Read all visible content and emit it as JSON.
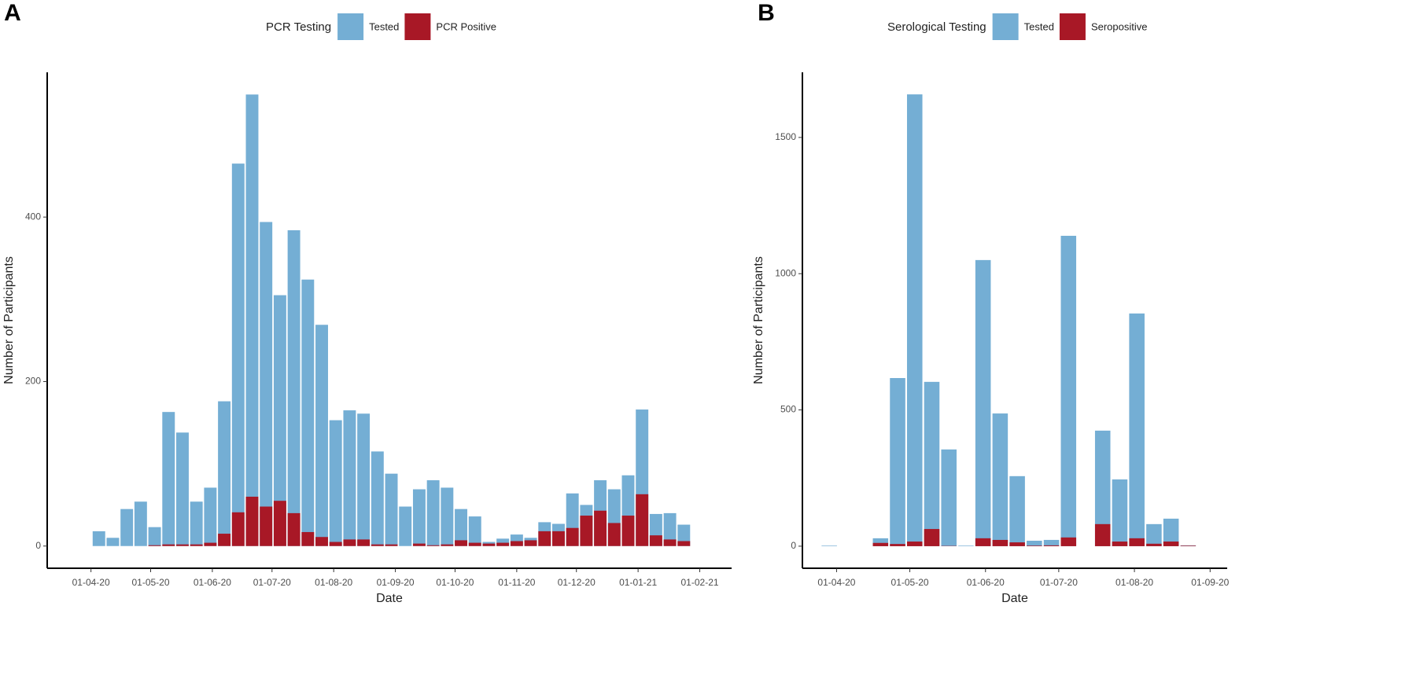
{
  "chart_data": [
    {
      "type": "bar",
      "barmode": "overlay",
      "panel_label": "A",
      "legend_title": "PCR Testing",
      "xlabel": "Date",
      "ylabel": "Number of Participants",
      "x": [
        "2020-04-05",
        "2020-04-12",
        "2020-04-19",
        "2020-04-26",
        "2020-05-03",
        "2020-05-10",
        "2020-05-17",
        "2020-05-24",
        "2020-05-31",
        "2020-06-07",
        "2020-06-14",
        "2020-06-21",
        "2020-06-28",
        "2020-07-05",
        "2020-07-12",
        "2020-07-19",
        "2020-07-26",
        "2020-08-02",
        "2020-08-09",
        "2020-08-16",
        "2020-08-23",
        "2020-08-30",
        "2020-09-06",
        "2020-09-13",
        "2020-09-20",
        "2020-09-27",
        "2020-10-04",
        "2020-10-11",
        "2020-10-18",
        "2020-10-25",
        "2020-11-01",
        "2020-11-08",
        "2020-11-15",
        "2020-11-22",
        "2020-11-29",
        "2020-12-06",
        "2020-12-13",
        "2020-12-20",
        "2020-12-27",
        "2021-01-03",
        "2021-01-10",
        "2021-01-17",
        "2021-01-24"
      ],
      "series": [
        {
          "name": "Tested",
          "color": "#74aed4",
          "values": [
            18,
            10,
            45,
            54,
            23,
            163,
            138,
            54,
            71,
            176,
            465,
            549,
            394,
            305,
            384,
            324,
            269,
            153,
            165,
            161,
            115,
            88,
            48,
            69,
            80,
            71,
            45,
            36,
            5,
            9,
            14,
            10,
            29,
            27,
            64,
            50,
            80,
            69,
            86,
            166,
            39,
            40,
            26
          ]
        },
        {
          "name": "PCR Positive",
          "color": "#a81826",
          "values": [
            0,
            0,
            0,
            0,
            1,
            2,
            2,
            2,
            4,
            15,
            41,
            60,
            48,
            55,
            40,
            17,
            11,
            5,
            8,
            8,
            2,
            2,
            0,
            3,
            1,
            2,
            7,
            4,
            3,
            4,
            6,
            7,
            18,
            18,
            22,
            37,
            43,
            28,
            37,
            63,
            13,
            8,
            6
          ]
        }
      ],
      "xlim": [
        "2020-03-10",
        "2021-02-17"
      ],
      "xticks": [
        {
          "value": "2020-04-01",
          "label": "01-04-20"
        },
        {
          "value": "2020-05-01",
          "label": "01-05-20"
        },
        {
          "value": "2020-06-01",
          "label": "01-06-20"
        },
        {
          "value": "2020-07-01",
          "label": "01-07-20"
        },
        {
          "value": "2020-08-01",
          "label": "01-08-20"
        },
        {
          "value": "2020-09-01",
          "label": "01-09-20"
        },
        {
          "value": "2020-10-01",
          "label": "01-10-20"
        },
        {
          "value": "2020-11-01",
          "label": "01-11-20"
        },
        {
          "value": "2020-12-01",
          "label": "01-12-20"
        },
        {
          "value": "2021-01-01",
          "label": "01-01-21"
        },
        {
          "value": "2021-02-01",
          "label": "01-02-21"
        }
      ],
      "ylim": [
        -27,
        576
      ],
      "yticks": [
        0,
        200,
        400
      ],
      "grid": false
    },
    {
      "type": "bar",
      "barmode": "overlay",
      "panel_label": "B",
      "legend_title": "Serological Testing",
      "xlabel": "Date",
      "ylabel": "Number of Participants",
      "x": [
        "2020-03-29",
        "2020-04-19",
        "2020-04-26",
        "2020-05-03",
        "2020-05-10",
        "2020-05-17",
        "2020-05-24",
        "2020-05-31",
        "2020-06-07",
        "2020-06-14",
        "2020-06-21",
        "2020-06-28",
        "2020-07-05",
        "2020-07-19",
        "2020-07-26",
        "2020-08-02",
        "2020-08-09",
        "2020-08-16",
        "2020-08-23"
      ],
      "series": [
        {
          "name": "Tested",
          "color": "#74aed4",
          "values": [
            2,
            29,
            617,
            1658,
            603,
            355,
            2,
            1050,
            487,
            257,
            20,
            23,
            1139,
            424,
            245,
            854,
            81,
            101,
            3
          ]
        },
        {
          "name": "Seropositive",
          "color": "#a81826",
          "values": [
            0,
            12,
            8,
            17,
            63,
            1,
            0,
            29,
            23,
            14,
            2,
            3,
            32,
            81,
            17,
            29,
            9,
            17,
            2
          ]
        }
      ],
      "xlim": [
        "2020-03-18",
        "2020-09-08"
      ],
      "xticks": [
        {
          "value": "2020-04-01",
          "label": "01-04-20"
        },
        {
          "value": "2020-05-01",
          "label": "01-05-20"
        },
        {
          "value": "2020-06-01",
          "label": "01-06-20"
        },
        {
          "value": "2020-07-01",
          "label": "01-07-20"
        },
        {
          "value": "2020-08-01",
          "label": "01-08-20"
        },
        {
          "value": "2020-09-01",
          "label": "01-09-20"
        }
      ],
      "ylim": [
        -81,
        1739
      ],
      "yticks": [
        0,
        500,
        1000,
        1500
      ],
      "grid": false
    }
  ]
}
